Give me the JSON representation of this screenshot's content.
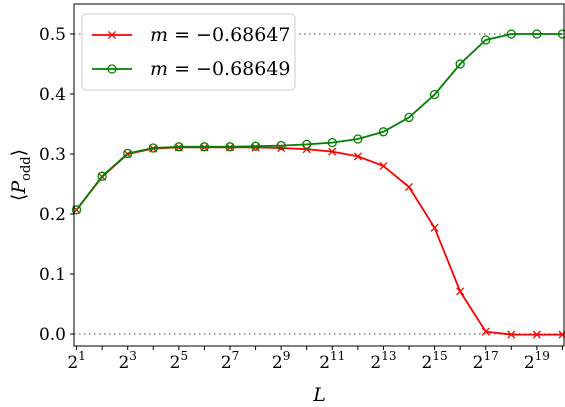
{
  "chart_data": {
    "type": "line",
    "x": [
      1,
      2,
      3,
      4,
      5,
      6,
      7,
      8,
      9,
      10,
      11,
      12,
      13,
      14,
      15,
      16,
      17,
      18,
      19,
      20
    ],
    "x_tick_labels": [
      {
        "exp": 1,
        "base": "2",
        "sup": "1"
      },
      {
        "exp": 3,
        "base": "2",
        "sup": "3"
      },
      {
        "exp": 5,
        "base": "2",
        "sup": "5"
      },
      {
        "exp": 7,
        "base": "2",
        "sup": "7"
      },
      {
        "exp": 9,
        "base": "2",
        "sup": "9"
      },
      {
        "exp": 11,
        "base": "2",
        "sup": "11"
      },
      {
        "exp": 13,
        "base": "2",
        "sup": "13"
      },
      {
        "exp": 15,
        "base": "2",
        "sup": "15"
      },
      {
        "exp": 17,
        "base": "2",
        "sup": "17"
      },
      {
        "exp": 19,
        "base": "2",
        "sup": "19"
      }
    ],
    "y_ticks": [
      0.0,
      0.1,
      0.2,
      0.3,
      0.4,
      0.5
    ],
    "y_tick_labels": [
      "0.0",
      "0.1",
      "0.2",
      "0.3",
      "0.4",
      "0.5"
    ],
    "xlim": [
      0.9,
      20.1
    ],
    "ylim": [
      -0.02,
      0.55
    ],
    "xlabel": "L",
    "ylabel": {
      "prefix": "⟨",
      "main": "P",
      "sub": "odd",
      "suffix": "⟩"
    },
    "x_scale": "log2",
    "grid": false,
    "legend_position": "top-left",
    "reference_lines": [
      {
        "y": 0.5,
        "style": "dotted",
        "color": "#808080"
      },
      {
        "y": 0.0,
        "style": "dotted",
        "color": "#808080"
      }
    ],
    "series": [
      {
        "name": "m = −0.68647",
        "name_parts": {
          "var": "m",
          "rest": " = −0.68647"
        },
        "color": "#ff0000",
        "marker": "x",
        "values": [
          0.207,
          0.262,
          0.3,
          0.309,
          0.311,
          0.311,
          0.311,
          0.311,
          0.31,
          0.308,
          0.304,
          0.296,
          0.28,
          0.245,
          0.177,
          0.071,
          0.004,
          -0.001,
          -0.001,
          -0.001
        ]
      },
      {
        "name": "m = −0.68649",
        "name_parts": {
          "var": "m",
          "rest": " = −0.68649"
        },
        "color": "#008000",
        "marker": "o",
        "values": [
          0.207,
          0.263,
          0.301,
          0.31,
          0.312,
          0.312,
          0.312,
          0.313,
          0.314,
          0.316,
          0.319,
          0.325,
          0.337,
          0.361,
          0.399,
          0.45,
          0.49,
          0.5,
          0.5,
          0.5
        ]
      }
    ]
  }
}
